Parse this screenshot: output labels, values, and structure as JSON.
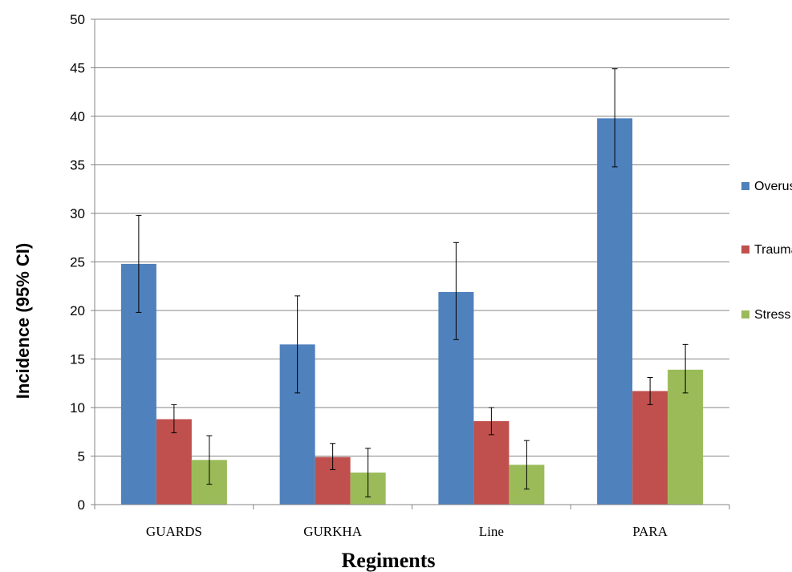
{
  "chart_data": {
    "type": "bar",
    "title": "",
    "xlabel": "Regiments",
    "ylabel": "Incidence  (95% CI)",
    "ylim": [
      0,
      50
    ],
    "yticks": [
      0,
      5,
      10,
      15,
      20,
      25,
      30,
      35,
      40,
      45,
      50
    ],
    "grid": true,
    "legend_position": "right",
    "categories": [
      "GUARDS",
      "GURKHA",
      "Line",
      "PARA"
    ],
    "series": [
      {
        "name": "Overuse",
        "color": "#4F81BD",
        "values": [
          24.8,
          16.5,
          21.9,
          39.8
        ],
        "ci_low": [
          19.8,
          11.5,
          17.0,
          34.8
        ],
        "ci_high": [
          29.8,
          21.5,
          27.0,
          44.9
        ]
      },
      {
        "name": "Trauma",
        "color": "#C0504D",
        "values": [
          8.8,
          4.9,
          8.6,
          11.7
        ],
        "ci_low": [
          7.4,
          3.6,
          7.2,
          10.3
        ],
        "ci_high": [
          10.3,
          6.3,
          10.0,
          13.1
        ]
      },
      {
        "name": "Stress #",
        "color": "#9BBB59",
        "values": [
          4.6,
          3.3,
          4.1,
          13.9
        ],
        "ci_low": [
          2.1,
          0.8,
          1.6,
          11.5
        ],
        "ci_high": [
          7.1,
          5.8,
          6.6,
          16.5
        ]
      }
    ]
  }
}
